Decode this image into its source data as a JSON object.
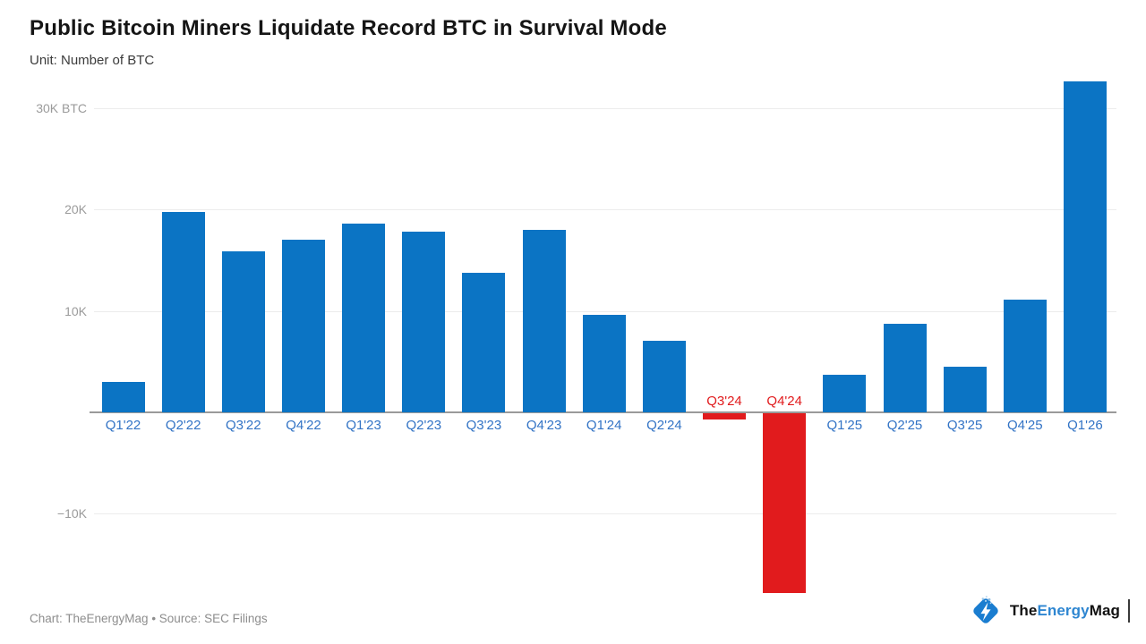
{
  "title": "Public Bitcoin Miners Liquidate Record BTC in Survival Mode",
  "subtitle": "Unit: Number of BTC",
  "footer": "Chart: TheEnergyMag • Source: SEC Filings",
  "logo": {
    "part1": "The",
    "part2": "Energy",
    "part3": "Mag"
  },
  "colors": {
    "bar_positive": "#0b74c4",
    "bar_negative": "#e11b1d",
    "xlabel_positive": "#3273c5",
    "xlabel_negative": "#e11b1d",
    "gridline": "#ececec",
    "axis_line": "#9a9a9a",
    "ytick_text": "#9b9b9b",
    "logo_blue": "#1a7dd0",
    "logo_dark": "#111111"
  },
  "chart_data": {
    "type": "bar",
    "title": "Public Bitcoin Miners Liquidate Record BTC in Survival Mode",
    "unit": "Number of BTC",
    "categories": [
      "Q1'22",
      "Q2'22",
      "Q3'22",
      "Q4'22",
      "Q1'23",
      "Q2'23",
      "Q3'23",
      "Q4'23",
      "Q1'24",
      "Q2'24",
      "Q3'24",
      "Q4'24",
      "Q1'25",
      "Q2'25",
      "Q3'25",
      "Q4'25",
      "Q1'26"
    ],
    "values": [
      3000,
      19800,
      15900,
      17000,
      18600,
      17800,
      13800,
      18000,
      9600,
      7100,
      -600,
      -17700,
      3700,
      8700,
      4500,
      11100,
      32700
    ],
    "yticks": [
      {
        "value": 30000,
        "label": "30K BTC"
      },
      {
        "value": 20000,
        "label": "20K"
      },
      {
        "value": 10000,
        "label": "10K"
      },
      {
        "value": -10000,
        "label": "−10K"
      }
    ],
    "ylim": [
      -18000,
      33000
    ],
    "grid": true,
    "legend": "none",
    "negative_color_note": "Q3'24 and Q4'24 rendered red with labels above axis"
  }
}
